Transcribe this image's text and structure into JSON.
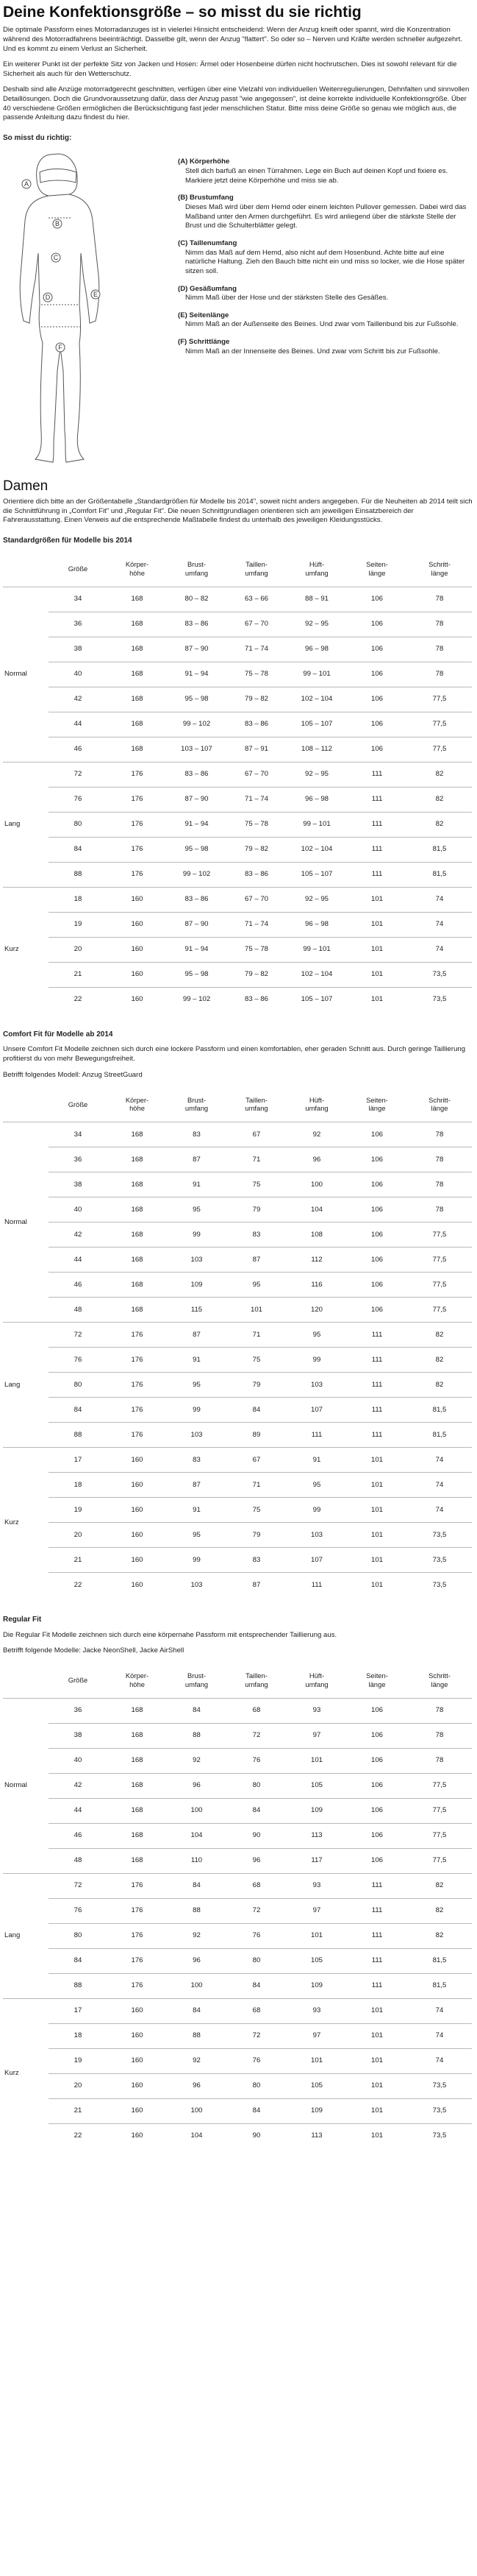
{
  "title": "Deine Konfektionsgröße – so misst du sie richtig",
  "intro": [
    "Die optimale Passform eines Motorradanzuges ist in vielerlei Hinsicht entscheidend: Wenn der Anzug kneift oder spannt, wird die Konzentration während des Motorradfahrens beeinträchtigt. Dasselbe gilt, wenn der Anzug \"flattert\". So oder so – Nerven und Kräfte werden schneller aufgezehrt. Und es kommt zu einem Verlust an Sicherheit.",
    "Ein weiterer Punkt ist der perfekte Sitz von Jacken und Hosen: Ärmel oder Hosenbeine dürfen nicht hochrutschen. Dies ist sowohl relevant für die Sicherheit als auch für den Wetterschutz.",
    "Deshalb sind alle Anzüge motorradgerecht geschnitten, verfügen über eine Vielzahl von individuellen Weitenregulierungen, Dehnfalten und sinnvollen Detaillösungen. Doch die Grundvoraussetzung dafür, dass der Anzug passt \"wie angegossen\", ist deine korrekte individuelle Konfektionsgröße. Über 40 verschiedene Größen ermöglichen die Berücksichtigung fast jeder menschlichen Statur. Bitte miss deine Größe so genau wie möglich aus, die passende Anleitung dazu findest du hier."
  ],
  "measure_heading": "So misst du richtig:",
  "figure_labels": [
    "A",
    "B",
    "C",
    "D",
    "E",
    "F"
  ],
  "measurements": [
    {
      "title": "(A) Körperhöhe",
      "text": "Stell dich barfuß an einen Türrahmen. Lege ein Buch auf deinen Kopf und fixiere es. Markiere jetzt deine Körperhöhe und miss sie ab."
    },
    {
      "title": "(B) Brustumfang",
      "text": "Dieses Maß wird über dem Hemd oder einem leichten Pullover gemessen. Dabei wird das Maßband unter den Armen durchgeführt. Es wird anliegend über die stärkste Stelle der Brust und die Schulterblätter gelegt."
    },
    {
      "title": "(C) Taillenumfang",
      "text": "Nimm das Maß auf dem Hemd, also nicht auf dem Hosenbund. Achte bitte auf eine natürliche Haltung. Zieh den Bauch bitte nicht ein und miss so locker, wie die Hose später sitzen soll."
    },
    {
      "title": "(D) Gesäßumfang",
      "text": "Nimm Maß über der Hose und der stärksten Stelle des Gesäßes."
    },
    {
      "title": "(E) Seitenlänge",
      "text": "Nimm Maß an der Außenseite des Beines. Und zwar vom Taillenbund bis zur Fußsohle."
    },
    {
      "title": "(F) Schrittlänge",
      "text": "Nimm Maß an der Innenseite des Beines. Und zwar vom Schritt bis zur Fußsohle."
    }
  ],
  "damen_heading": "Damen",
  "damen_intro": "Orientiere dich bitte an der Größentabelle „Standardgrößen für Modelle bis 2014\", soweit nicht anders angegeben. Für die Neuheiten ab 2014 teilt sich die Schnittführung in „Comfort Fit\" und „Regular Fit\". Die neuen Schnittgrundlagen orientieren sich am jeweiligen Einsatzbereich der Fahrerausstattung. Einen Verweis auf die entsprechende Maßtabelle findest du unterhalb des jeweiligen Kleidungsstücks.",
  "headers": [
    "Größe",
    "Körper-\nhöhe",
    "Brust-\numfang",
    "Taillen-\numfang",
    "Hüft-\numfang",
    "Seiten-\nlänge",
    "Schritt-\nlänge"
  ],
  "tables": [
    {
      "heading": "Standardgrößen für Modelle bis 2014",
      "notes": [],
      "groups": [
        {
          "name": "Normal",
          "rows": [
            [
              "34",
              "168",
              "80 – 82",
              "63 – 66",
              "88 – 91",
              "106",
              "78"
            ],
            [
              "36",
              "168",
              "83 – 86",
              "67 – 70",
              "92 – 95",
              "106",
              "78"
            ],
            [
              "38",
              "168",
              "87 – 90",
              "71 – 74",
              "96 – 98",
              "106",
              "78"
            ],
            [
              "40",
              "168",
              "91 – 94",
              "75 – 78",
              "99 – 101",
              "106",
              "78"
            ],
            [
              "42",
              "168",
              "95 – 98",
              "79 – 82",
              "102 – 104",
              "106",
              "77,5"
            ],
            [
              "44",
              "168",
              "99 – 102",
              "83 – 86",
              "105 – 107",
              "106",
              "77,5"
            ],
            [
              "46",
              "168",
              "103 – 107",
              "87 – 91",
              "108 – 112",
              "106",
              "77,5"
            ]
          ]
        },
        {
          "name": "Lang",
          "rows": [
            [
              "72",
              "176",
              "83 – 86",
              "67 – 70",
              "92 – 95",
              "111",
              "82"
            ],
            [
              "76",
              "176",
              "87 – 90",
              "71 – 74",
              "96 – 98",
              "111",
              "82"
            ],
            [
              "80",
              "176",
              "91 – 94",
              "75 – 78",
              "99 – 101",
              "111",
              "82"
            ],
            [
              "84",
              "176",
              "95 – 98",
              "79 – 82",
              "102 – 104",
              "111",
              "81,5"
            ],
            [
              "88",
              "176",
              "99 – 102",
              "83 – 86",
              "105 – 107",
              "111",
              "81,5"
            ]
          ]
        },
        {
          "name": "Kurz",
          "rows": [
            [
              "18",
              "160",
              "83 – 86",
              "67 – 70",
              "92 – 95",
              "101",
              "74"
            ],
            [
              "19",
              "160",
              "87 – 90",
              "71 – 74",
              "96 – 98",
              "101",
              "74"
            ],
            [
              "20",
              "160",
              "91 – 94",
              "75 – 78",
              "99 – 101",
              "101",
              "74"
            ],
            [
              "21",
              "160",
              "95 – 98",
              "79 – 82",
              "102 – 104",
              "101",
              "73,5"
            ],
            [
              "22",
              "160",
              "99 – 102",
              "83 – 86",
              "105 – 107",
              "101",
              "73,5"
            ]
          ]
        }
      ]
    },
    {
      "heading": "Comfort Fit für Modelle ab 2014",
      "notes": [
        "Unsere Comfort Fit Modelle zeichnen sich durch eine lockere Passform und einen komfortablen, eher geraden Schnitt aus. Durch geringe Taillierung profitierst du von mehr Bewegungsfreiheit.",
        "Betrifft folgendes Modell: Anzug StreetGuard"
      ],
      "groups": [
        {
          "name": "Normal",
          "rows": [
            [
              "34",
              "168",
              "83",
              "67",
              "92",
              "106",
              "78"
            ],
            [
              "36",
              "168",
              "87",
              "71",
              "96",
              "106",
              "78"
            ],
            [
              "38",
              "168",
              "91",
              "75",
              "100",
              "106",
              "78"
            ],
            [
              "40",
              "168",
              "95",
              "79",
              "104",
              "106",
              "78"
            ],
            [
              "42",
              "168",
              "99",
              "83",
              "108",
              "106",
              "77,5"
            ],
            [
              "44",
              "168",
              "103",
              "87",
              "112",
              "106",
              "77,5"
            ],
            [
              "46",
              "168",
              "109",
              "95",
              "116",
              "106",
              "77,5"
            ],
            [
              "48",
              "168",
              "115",
              "101",
              "120",
              "106",
              "77,5"
            ]
          ]
        },
        {
          "name": "Lang",
          "rows": [
            [
              "72",
              "176",
              "87",
              "71",
              "95",
              "111",
              "82"
            ],
            [
              "76",
              "176",
              "91",
              "75",
              "99",
              "111",
              "82"
            ],
            [
              "80",
              "176",
              "95",
              "79",
              "103",
              "111",
              "82"
            ],
            [
              "84",
              "176",
              "99",
              "84",
              "107",
              "111",
              "81,5"
            ],
            [
              "88",
              "176",
              "103",
              "89",
              "111",
              "111",
              "81,5"
            ]
          ]
        },
        {
          "name": "Kurz",
          "rows": [
            [
              "17",
              "160",
              "83",
              "67",
              "91",
              "101",
              "74"
            ],
            [
              "18",
              "160",
              "87",
              "71",
              "95",
              "101",
              "74"
            ],
            [
              "19",
              "160",
              "91",
              "75",
              "99",
              "101",
              "74"
            ],
            [
              "20",
              "160",
              "95",
              "79",
              "103",
              "101",
              "73,5"
            ],
            [
              "21",
              "160",
              "99",
              "83",
              "107",
              "101",
              "73,5"
            ],
            [
              "22",
              "160",
              "103",
              "87",
              "111",
              "101",
              "73,5"
            ]
          ]
        }
      ]
    },
    {
      "heading": "Regular Fit",
      "notes": [
        "Die Regular Fit Modelle zeichnen sich durch eine körpernahe Passform mit entsprechender Taillierung aus.",
        "Betrifft folgende Modelle: Jacke NeonShell, Jacke AirShell"
      ],
      "groups": [
        {
          "name": "Normal",
          "rows": [
            [
              "36",
              "168",
              "84",
              "68",
              "93",
              "106",
              "78"
            ],
            [
              "38",
              "168",
              "88",
              "72",
              "97",
              "106",
              "78"
            ],
            [
              "40",
              "168",
              "92",
              "76",
              "101",
              "106",
              "78"
            ],
            [
              "42",
              "168",
              "96",
              "80",
              "105",
              "106",
              "77,5"
            ],
            [
              "44",
              "168",
              "100",
              "84",
              "109",
              "106",
              "77,5"
            ],
            [
              "46",
              "168",
              "104",
              "90",
              "113",
              "106",
              "77,5"
            ],
            [
              "48",
              "168",
              "110",
              "96",
              "117",
              "106",
              "77,5"
            ]
          ]
        },
        {
          "name": "Lang",
          "rows": [
            [
              "72",
              "176",
              "84",
              "68",
              "93",
              "111",
              "82"
            ],
            [
              "76",
              "176",
              "88",
              "72",
              "97",
              "111",
              "82"
            ],
            [
              "80",
              "176",
              "92",
              "76",
              "101",
              "111",
              "82"
            ],
            [
              "84",
              "176",
              "96",
              "80",
              "105",
              "111",
              "81,5"
            ],
            [
              "88",
              "176",
              "100",
              "84",
              "109",
              "111",
              "81,5"
            ]
          ]
        },
        {
          "name": "Kurz",
          "rows": [
            [
              "17",
              "160",
              "84",
              "68",
              "93",
              "101",
              "74"
            ],
            [
              "18",
              "160",
              "88",
              "72",
              "97",
              "101",
              "74"
            ],
            [
              "19",
              "160",
              "92",
              "76",
              "101",
              "101",
              "74"
            ],
            [
              "20",
              "160",
              "96",
              "80",
              "105",
              "101",
              "73,5"
            ],
            [
              "21",
              "160",
              "100",
              "84",
              "109",
              "101",
              "73,5"
            ],
            [
              "22",
              "160",
              "104",
              "90",
              "113",
              "101",
              "73,5"
            ]
          ]
        }
      ]
    }
  ]
}
